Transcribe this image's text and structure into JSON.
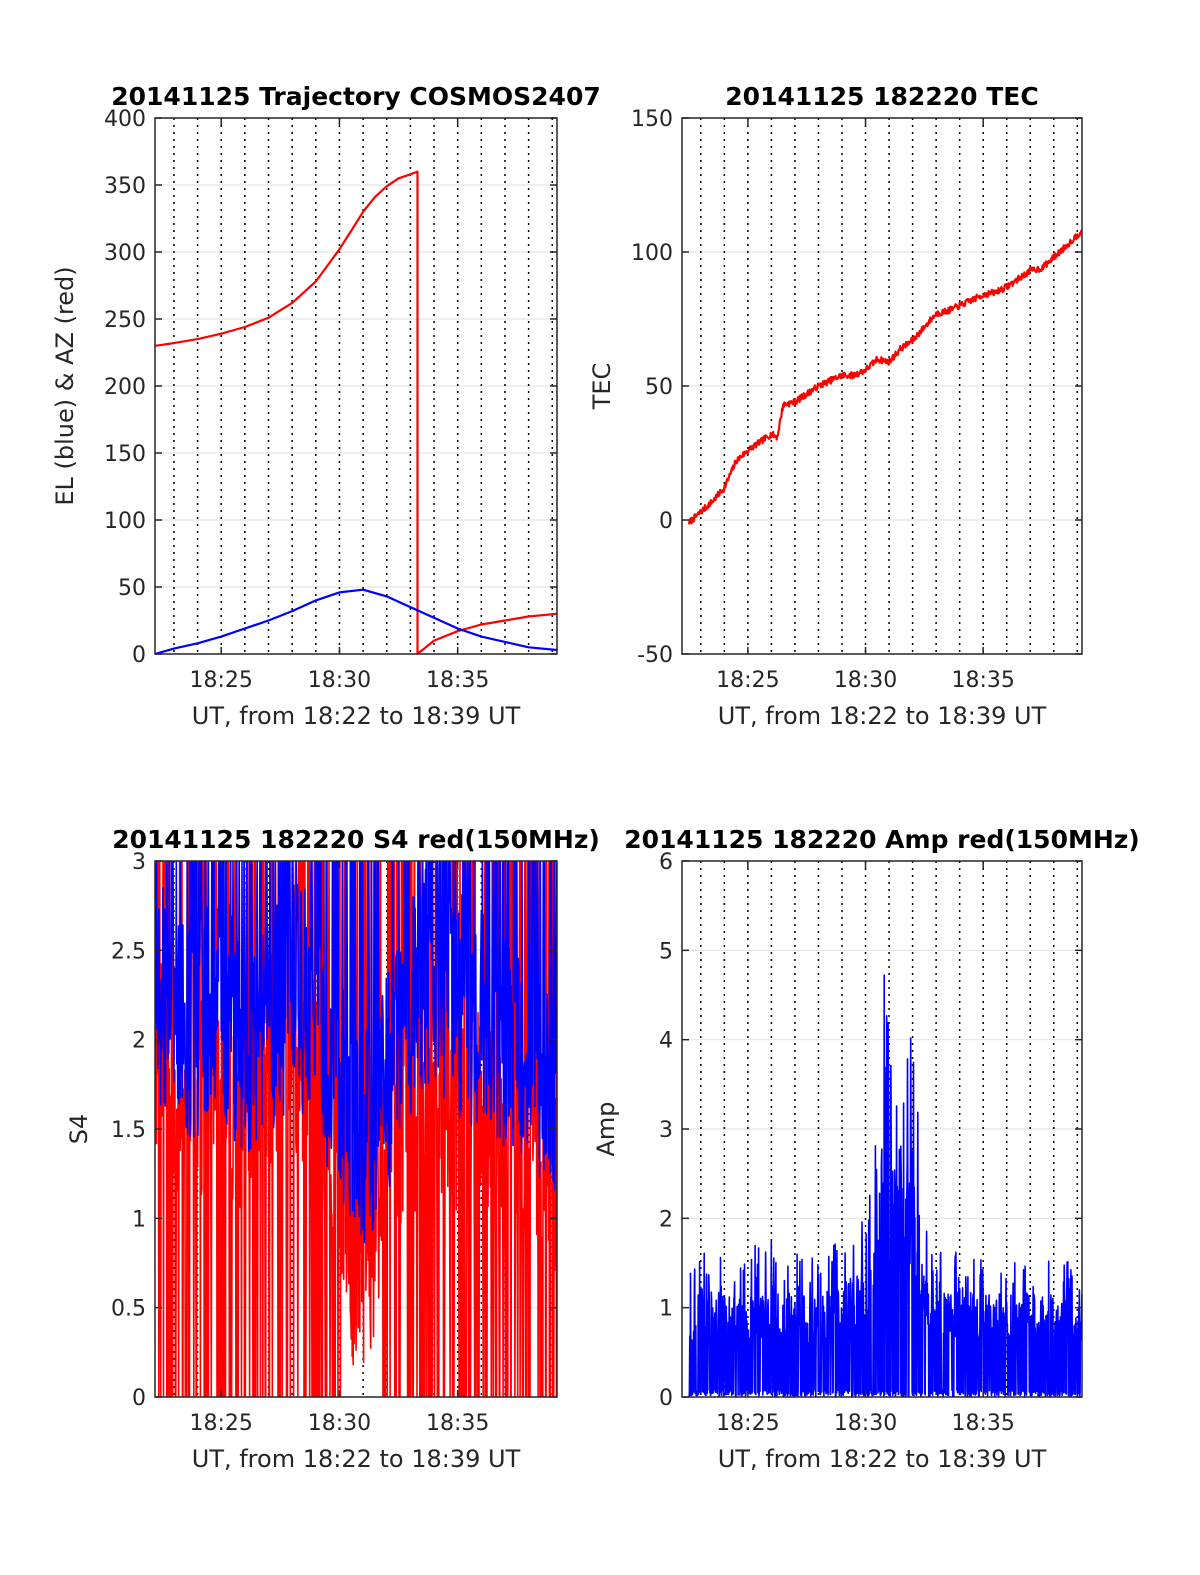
{
  "chart_data": [
    {
      "type": "line",
      "title": "20141125 Trajectory COSMOS2407",
      "xlabel": "UT, from 18:22 to 18:39 UT",
      "ylabel": "EL (blue) & AZ (red)",
      "xlim": [
        "18:22:12",
        "18:39:12"
      ],
      "ylim": [
        0,
        400
      ],
      "xticks": [
        "18:25",
        "18:30",
        "18:35"
      ],
      "yticks": [
        "0",
        "50",
        "100",
        "150",
        "200",
        "250",
        "300",
        "350",
        "400"
      ],
      "grid": "x dotted every 1 min, y light",
      "series": [
        {
          "color": "#ff0000",
          "x": [
            "18:22:12",
            "18:23:00",
            "18:24:00",
            "18:25:00",
            "18:26:00",
            "18:27:00",
            "18:28:00",
            "18:29:00",
            "18:30:00",
            "18:30:30",
            "18:31:00",
            "18:31:30",
            "18:32:00",
            "18:32:30",
            "18:33:00",
            "18:33:18",
            "18:33:18",
            "18:34:00",
            "18:35:00",
            "18:36:00",
            "18:37:00",
            "18:38:00",
            "18:39:12"
          ],
          "values": [
            230,
            232,
            235,
            239,
            244,
            251,
            262,
            278,
            302,
            316,
            330,
            341,
            349,
            355,
            358,
            360,
            0,
            10,
            17,
            22,
            25,
            28,
            30
          ]
        },
        {
          "color": "#0000ff",
          "x": [
            "18:22:12",
            "18:23:00",
            "18:24:00",
            "18:25:00",
            "18:26:00",
            "18:27:00",
            "18:28:00",
            "18:29:00",
            "18:30:00",
            "18:31:00",
            "18:32:00",
            "18:33:00",
            "18:34:00",
            "18:35:00",
            "18:36:00",
            "18:37:00",
            "18:38:00",
            "18:39:12"
          ],
          "values": [
            0,
            4,
            8,
            13,
            19,
            25,
            32,
            40,
            46,
            48,
            43,
            35,
            27,
            19,
            13,
            9,
            5,
            3
          ]
        }
      ]
    },
    {
      "type": "line",
      "title": "20141125 182220 TEC",
      "xlabel": "UT, from 18:22 to 18:39 UT",
      "ylabel": "TEC",
      "xlim": [
        "18:22:12",
        "18:39:12"
      ],
      "ylim": [
        -50,
        150
      ],
      "xticks": [
        "18:25",
        "18:30",
        "18:35"
      ],
      "yticks": [
        "-50",
        "0",
        "50",
        "100",
        "150"
      ],
      "grid": "x dotted every 1 min, y light",
      "series": [
        {
          "color": "#ff0000",
          "x": [
            "18:22:30",
            "18:23:00",
            "18:23:30",
            "18:24:00",
            "18:24:30",
            "18:25:00",
            "18:25:30",
            "18:26:00",
            "18:26:15",
            "18:26:30",
            "18:27:00",
            "18:27:30",
            "18:28:00",
            "18:28:30",
            "18:29:00",
            "18:29:30",
            "18:30:00",
            "18:30:30",
            "18:31:00",
            "18:31:30",
            "18:32:00",
            "18:32:30",
            "18:33:00",
            "18:33:30",
            "18:34:00",
            "18:34:30",
            "18:35:00",
            "18:35:30",
            "18:36:00",
            "18:36:30",
            "18:37:00",
            "18:37:30",
            "18:38:00",
            "18:38:30",
            "18:39:12"
          ],
          "values": [
            -1,
            3,
            7,
            12,
            22,
            26,
            29,
            32,
            31,
            43,
            44,
            47,
            50,
            52,
            54,
            54,
            56,
            60,
            59,
            64,
            67,
            72,
            77,
            78,
            80,
            82,
            84,
            85,
            87,
            90,
            93,
            94,
            98,
            102,
            108
          ]
        }
      ]
    },
    {
      "type": "line",
      "title": "20141125 182220 S4 red(150MHz)",
      "xlabel": "UT, from 18:22 to 18:39 UT",
      "ylabel": "S4",
      "xlim": [
        "18:22:12",
        "18:39:12"
      ],
      "ylim": [
        0,
        3
      ],
      "xticks": [
        "18:25",
        "18:30",
        "18:35"
      ],
      "yticks": [
        "0",
        "0.5",
        "1",
        "1.5",
        "2",
        "2.5",
        "3"
      ],
      "grid": "x dotted every 1 min, y light",
      "series": [
        {
          "color": "#ff0000",
          "x": [
            "18:22:12",
            "18:23:00",
            "18:24:00",
            "18:25:00",
            "18:26:00",
            "18:27:00",
            "18:28:00",
            "18:29:00",
            "18:30:00",
            "18:30:30",
            "18:31:00",
            "18:31:30",
            "18:32:00",
            "18:33:00",
            "18:34:00",
            "18:35:00",
            "18:36:00",
            "18:37:00",
            "18:38:00",
            "18:39:12"
          ],
          "values": [
            2.0,
            1.6,
            1.7,
            1.8,
            1.6,
            1.8,
            2.0,
            1.7,
            1.3,
            0.8,
            0.6,
            0.9,
            1.5,
            1.6,
            1.7,
            1.5,
            1.6,
            1.4,
            1.4,
            1.3
          ]
        },
        {
          "color": "#0000ff",
          "x": [
            "18:22:12",
            "18:23:00",
            "18:24:00",
            "18:25:00",
            "18:26:00",
            "18:27:00",
            "18:28:00",
            "18:29:00",
            "18:30:00",
            "18:30:30",
            "18:31:00",
            "18:31:30",
            "18:32:00",
            "18:33:00",
            "18:34:00",
            "18:35:00",
            "18:36:00",
            "18:37:00",
            "18:38:00",
            "18:39:12"
          ],
          "values": [
            2.4,
            2.0,
            2.1,
            2.2,
            2.0,
            2.1,
            2.3,
            2.1,
            1.7,
            1.6,
            1.5,
            1.6,
            1.7,
            2.2,
            2.4,
            2.2,
            2.1,
            2.0,
            1.9,
            1.8
          ]
        }
      ]
    },
    {
      "type": "line",
      "title": "20141125 182220 Amp red(150MHz)",
      "xlabel": "UT, from 18:22 to 18:39 UT",
      "ylabel": "Amp",
      "xlim": [
        "18:22:12",
        "18:39:12"
      ],
      "ylim": [
        0,
        6
      ],
      "xticks": [
        "18:25",
        "18:30",
        "18:35"
      ],
      "yticks": [
        "0",
        "1",
        "2",
        "3",
        "4",
        "5",
        "6"
      ],
      "grid": "x dotted every 1 min, y light",
      "series": [
        {
          "color": "#0000ff",
          "x": [
            "18:22:30",
            "18:23:00",
            "18:24:00",
            "18:25:00",
            "18:26:00",
            "18:27:00",
            "18:28:00",
            "18:29:00",
            "18:29:30",
            "18:30:00",
            "18:30:30",
            "18:30:54",
            "18:31:00",
            "18:31:30",
            "18:32:00",
            "18:32:30",
            "18:33:00",
            "18:34:00",
            "18:35:00",
            "18:36:00",
            "18:37:00",
            "18:38:00",
            "18:39:12"
          ],
          "values": [
            1.0,
            1.2,
            1.1,
            1.1,
            1.2,
            1.1,
            1.1,
            1.2,
            1.3,
            1.5,
            2.0,
            4.25,
            2.8,
            2.2,
            2.8,
            1.3,
            1.1,
            1.2,
            1.1,
            1.1,
            1.2,
            1.1,
            1.0
          ]
        }
      ]
    }
  ]
}
